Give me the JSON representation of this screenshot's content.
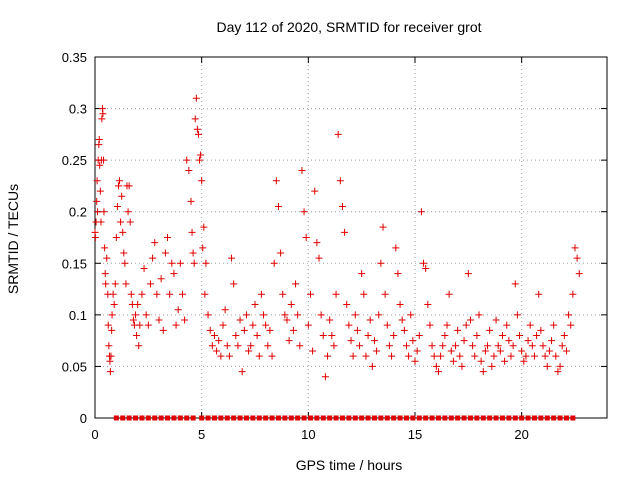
{
  "chart_data": {
    "type": "scatter",
    "title": "Day 112 of 2020, SRMTID for receiver grot",
    "xlabel": "GPS time / hours",
    "ylabel": "SRMTID / TECUs",
    "xlim": [
      0,
      24
    ],
    "ylim": [
      0,
      0.35
    ],
    "x_ticks": [
      0,
      5,
      10,
      15,
      20
    ],
    "x_tick_labels": [
      "0",
      "5",
      "10",
      "15",
      "20"
    ],
    "y_ticks": [
      0,
      0.05,
      0.1,
      0.15,
      0.2,
      0.25,
      0.3,
      0.35
    ],
    "y_tick_labels": [
      "0",
      "0.05",
      "0.1",
      "0.15",
      "0.2",
      "0.25",
      "0.3",
      "0.35"
    ],
    "grid": true,
    "marker": "plus",
    "color": "#e00000",
    "series": [
      {
        "name": "SRMTID",
        "points": [
          [
            0.0,
            0.18
          ],
          [
            0.02,
            0.175
          ],
          [
            0.05,
            0.19
          ],
          [
            0.08,
            0.21
          ],
          [
            0.1,
            0.23
          ],
          [
            0.12,
            0.2
          ],
          [
            0.15,
            0.25
          ],
          [
            0.18,
            0.265
          ],
          [
            0.2,
            0.27
          ],
          [
            0.22,
            0.245
          ],
          [
            0.25,
            0.22
          ],
          [
            0.28,
            0.19
          ],
          [
            0.3,
            0.25
          ],
          [
            0.32,
            0.29
          ],
          [
            0.35,
            0.3
          ],
          [
            0.37,
            0.295
          ],
          [
            0.4,
            0.25
          ],
          [
            0.42,
            0.2
          ],
          [
            0.45,
            0.165
          ],
          [
            0.48,
            0.14
          ],
          [
            0.5,
            0.13
          ],
          [
            0.55,
            0.155
          ],
          [
            0.6,
            0.12
          ],
          [
            0.62,
            0.09
          ],
          [
            0.65,
            0.07
          ],
          [
            0.68,
            0.06
          ],
          [
            0.7,
            0.055
          ],
          [
            0.72,
            0.045
          ],
          [
            0.75,
            0.06
          ],
          [
            0.78,
            0.085
          ],
          [
            0.8,
            0.1
          ],
          [
            0.85,
            0.12
          ],
          [
            0.9,
            0.11
          ],
          [
            0.95,
            0.13
          ],
          [
            1.0,
            0.175
          ],
          [
            1.05,
            0.205
          ],
          [
            1.1,
            0.225
          ],
          [
            1.15,
            0.23
          ],
          [
            1.2,
            0.19
          ],
          [
            1.25,
            0.215
          ],
          [
            1.3,
            0.18
          ],
          [
            1.35,
            0.16
          ],
          [
            1.4,
            0.15
          ],
          [
            1.45,
            0.13
          ],
          [
            1.5,
            0.225
          ],
          [
            1.55,
            0.2
          ],
          [
            1.6,
            0.225
          ],
          [
            1.65,
            0.19
          ],
          [
            1.7,
            0.12
          ],
          [
            1.75,
            0.11
          ],
          [
            1.8,
            0.095
          ],
          [
            1.85,
            0.09
          ],
          [
            1.9,
            0.1
          ],
          [
            1.95,
            0.08
          ],
          [
            2.0,
            0.11
          ],
          [
            2.05,
            0.07
          ],
          [
            2.1,
            0.09
          ],
          [
            2.2,
            0.12
          ],
          [
            2.3,
            0.145
          ],
          [
            2.4,
            0.1
          ],
          [
            2.5,
            0.09
          ],
          [
            2.6,
            0.13
          ],
          [
            2.7,
            0.155
          ],
          [
            2.8,
            0.17
          ],
          [
            2.9,
            0.12
          ],
          [
            3.0,
            0.095
          ],
          [
            3.1,
            0.135
          ],
          [
            3.2,
            0.085
          ],
          [
            3.3,
            0.16
          ],
          [
            3.4,
            0.175
          ],
          [
            3.5,
            0.12
          ],
          [
            3.6,
            0.15
          ],
          [
            3.7,
            0.14
          ],
          [
            3.8,
            0.09
          ],
          [
            3.9,
            0.105
          ],
          [
            4.0,
            0.15
          ],
          [
            4.1,
            0.12
          ],
          [
            4.2,
            0.095
          ],
          [
            4.3,
            0.25
          ],
          [
            4.4,
            0.24
          ],
          [
            4.5,
            0.21
          ],
          [
            4.55,
            0.18
          ],
          [
            4.6,
            0.16
          ],
          [
            4.65,
            0.15
          ],
          [
            4.7,
            0.29
          ],
          [
            4.75,
            0.31
          ],
          [
            4.8,
            0.28
          ],
          [
            4.85,
            0.275
          ],
          [
            4.9,
            0.25
          ],
          [
            4.95,
            0.255
          ],
          [
            5.0,
            0.23
          ],
          [
            5.05,
            0.165
          ],
          [
            5.1,
            0.185
          ],
          [
            5.15,
            0.12
          ],
          [
            5.2,
            0.15
          ],
          [
            5.3,
            0.1
          ],
          [
            5.4,
            0.085
          ],
          [
            5.5,
            0.07
          ],
          [
            5.6,
            0.08
          ],
          [
            5.7,
            0.065
          ],
          [
            5.8,
            0.075
          ],
          [
            5.9,
            0.06
          ],
          [
            6.0,
            0.09
          ],
          [
            6.1,
            0.105
          ],
          [
            6.2,
            0.07
          ],
          [
            6.3,
            0.06
          ],
          [
            6.4,
            0.155
          ],
          [
            6.5,
            0.13
          ],
          [
            6.6,
            0.08
          ],
          [
            6.7,
            0.07
          ],
          [
            6.8,
            0.095
          ],
          [
            6.9,
            0.045
          ],
          [
            7.0,
            0.085
          ],
          [
            7.1,
            0.1
          ],
          [
            7.2,
            0.065
          ],
          [
            7.3,
            0.07
          ],
          [
            7.4,
            0.09
          ],
          [
            7.5,
            0.11
          ],
          [
            7.6,
            0.08
          ],
          [
            7.7,
            0.06
          ],
          [
            7.8,
            0.12
          ],
          [
            7.9,
            0.1
          ],
          [
            8.0,
            0.09
          ],
          [
            8.1,
            0.07
          ],
          [
            8.2,
            0.085
          ],
          [
            8.3,
            0.06
          ],
          [
            8.4,
            0.15
          ],
          [
            8.5,
            0.23
          ],
          [
            8.6,
            0.205
          ],
          [
            8.7,
            0.16
          ],
          [
            8.8,
            0.12
          ],
          [
            8.9,
            0.1
          ],
          [
            9.0,
            0.095
          ],
          [
            9.1,
            0.075
          ],
          [
            9.2,
            0.11
          ],
          [
            9.3,
            0.085
          ],
          [
            9.4,
            0.13
          ],
          [
            9.5,
            0.1
          ],
          [
            9.6,
            0.07
          ],
          [
            9.7,
            0.24
          ],
          [
            9.8,
            0.2
          ],
          [
            9.9,
            0.175
          ],
          [
            10.0,
            0.09
          ],
          [
            10.1,
            0.12
          ],
          [
            10.2,
            0.065
          ],
          [
            10.3,
            0.22
          ],
          [
            10.4,
            0.17
          ],
          [
            10.5,
            0.155
          ],
          [
            10.6,
            0.1
          ],
          [
            10.7,
            0.08
          ],
          [
            10.8,
            0.04
          ],
          [
            10.9,
            0.06
          ],
          [
            11.0,
            0.095
          ],
          [
            11.1,
            0.08
          ],
          [
            11.2,
            0.07
          ],
          [
            11.3,
            0.12
          ],
          [
            11.4,
            0.275
          ],
          [
            11.5,
            0.23
          ],
          [
            11.6,
            0.205
          ],
          [
            11.7,
            0.18
          ],
          [
            11.8,
            0.11
          ],
          [
            11.9,
            0.09
          ],
          [
            12.0,
            0.075
          ],
          [
            12.1,
            0.06
          ],
          [
            12.2,
            0.1
          ],
          [
            12.3,
            0.085
          ],
          [
            12.4,
            0.07
          ],
          [
            12.5,
            0.14
          ],
          [
            12.6,
            0.12
          ],
          [
            12.7,
            0.06
          ],
          [
            12.8,
            0.08
          ],
          [
            12.9,
            0.095
          ],
          [
            13.0,
            0.05
          ],
          [
            13.1,
            0.075
          ],
          [
            13.2,
            0.065
          ],
          [
            13.3,
            0.1
          ],
          [
            13.4,
            0.15
          ],
          [
            13.5,
            0.185
          ],
          [
            13.6,
            0.12
          ],
          [
            13.7,
            0.09
          ],
          [
            13.8,
            0.07
          ],
          [
            13.9,
            0.06
          ],
          [
            14.0,
            0.08
          ],
          [
            14.1,
            0.165
          ],
          [
            14.2,
            0.14
          ],
          [
            14.3,
            0.11
          ],
          [
            14.4,
            0.095
          ],
          [
            14.5,
            0.085
          ],
          [
            14.6,
            0.07
          ],
          [
            14.7,
            0.06
          ],
          [
            14.8,
            0.1
          ],
          [
            14.9,
            0.075
          ],
          [
            15.0,
            0.055
          ],
          [
            15.1,
            0.065
          ],
          [
            15.2,
            0.08
          ],
          [
            15.3,
            0.2
          ],
          [
            15.4,
            0.15
          ],
          [
            15.5,
            0.145
          ],
          [
            15.6,
            0.11
          ],
          [
            15.7,
            0.09
          ],
          [
            15.8,
            0.07
          ],
          [
            15.9,
            0.06
          ],
          [
            16.0,
            0.05
          ],
          [
            16.1,
            0.045
          ],
          [
            16.2,
            0.06
          ],
          [
            16.3,
            0.07
          ],
          [
            16.4,
            0.08
          ],
          [
            16.5,
            0.09
          ],
          [
            16.6,
            0.12
          ],
          [
            16.7,
            0.065
          ],
          [
            16.8,
            0.055
          ],
          [
            16.9,
            0.07
          ],
          [
            17.0,
            0.085
          ],
          [
            17.1,
            0.06
          ],
          [
            17.2,
            0.05
          ],
          [
            17.3,
            0.075
          ],
          [
            17.4,
            0.09
          ],
          [
            17.5,
            0.14
          ],
          [
            17.6,
            0.095
          ],
          [
            17.7,
            0.07
          ],
          [
            17.8,
            0.06
          ],
          [
            17.9,
            0.08
          ],
          [
            18.0,
            0.1
          ],
          [
            18.1,
            0.055
          ],
          [
            18.2,
            0.045
          ],
          [
            18.3,
            0.065
          ],
          [
            18.4,
            0.07
          ],
          [
            18.5,
            0.085
          ],
          [
            18.6,
            0.05
          ],
          [
            18.7,
            0.06
          ],
          [
            18.8,
            0.095
          ],
          [
            18.9,
            0.07
          ],
          [
            19.0,
            0.065
          ],
          [
            19.1,
            0.08
          ],
          [
            19.2,
            0.055
          ],
          [
            19.3,
            0.09
          ],
          [
            19.4,
            0.075
          ],
          [
            19.5,
            0.06
          ],
          [
            19.6,
            0.07
          ],
          [
            19.7,
            0.13
          ],
          [
            19.8,
            0.1
          ],
          [
            19.9,
            0.08
          ],
          [
            20.0,
            0.065
          ],
          [
            20.1,
            0.055
          ],
          [
            20.2,
            0.06
          ],
          [
            20.3,
            0.075
          ],
          [
            20.4,
            0.09
          ],
          [
            20.5,
            0.07
          ],
          [
            20.6,
            0.06
          ],
          [
            20.7,
            0.08
          ],
          [
            20.8,
            0.12
          ],
          [
            20.9,
            0.085
          ],
          [
            21.0,
            0.07
          ],
          [
            21.1,
            0.06
          ],
          [
            21.2,
            0.05
          ],
          [
            21.3,
            0.065
          ],
          [
            21.4,
            0.075
          ],
          [
            21.5,
            0.09
          ],
          [
            21.6,
            0.06
          ],
          [
            21.7,
            0.045
          ],
          [
            21.8,
            0.05
          ],
          [
            21.9,
            0.07
          ],
          [
            22.0,
            0.08
          ],
          [
            22.1,
            0.065
          ],
          [
            22.2,
            0.1
          ],
          [
            22.3,
            0.09
          ],
          [
            22.4,
            0.12
          ],
          [
            22.5,
            0.165
          ],
          [
            22.6,
            0.155
          ],
          [
            22.7,
            0.14
          ]
        ]
      }
    ],
    "zero_markers_x": [
      1.0,
      1.3,
      1.6,
      1.9,
      2.2,
      2.5,
      2.8,
      3.1,
      3.4,
      3.7,
      4.0,
      4.3,
      4.6,
      5.0,
      5.3,
      5.6,
      5.9,
      6.2,
      6.5,
      6.8,
      7.1,
      7.4,
      7.7,
      8.0,
      8.3,
      8.6,
      8.9,
      9.2,
      9.5,
      9.8,
      10.1,
      10.4,
      10.7,
      11.0,
      11.3,
      11.6,
      11.9,
      12.2,
      12.5,
      12.8,
      13.1,
      13.4,
      13.7,
      14.0,
      14.3,
      14.6,
      14.9,
      15.2,
      15.5,
      15.8,
      16.1,
      16.4,
      16.7,
      17.0,
      17.3,
      17.6,
      17.9,
      18.2,
      18.5,
      18.8,
      19.1,
      19.4,
      19.7,
      20.0,
      20.3,
      20.6,
      20.9,
      21.2,
      21.5,
      21.8,
      22.1,
      22.4
    ]
  }
}
